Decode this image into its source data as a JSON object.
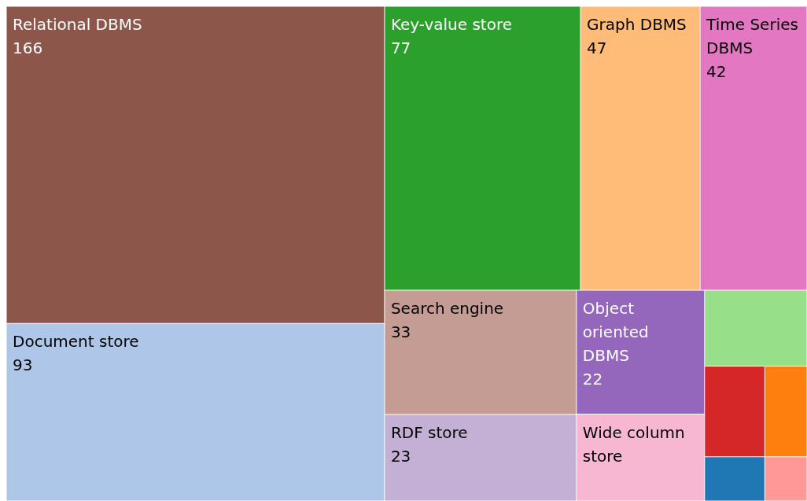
{
  "chart_data": {
    "type": "other",
    "categories": [
      "Relational DBMS",
      "Document store",
      "Key-value store",
      "Graph DBMS",
      "Time Series DBMS",
      "Search engine",
      "RDF store",
      "Object oriented DBMS",
      "Wide column store",
      null,
      null,
      null,
      null,
      null
    ],
    "values": [
      166,
      93,
      77,
      47,
      42,
      33,
      23,
      22,
      null,
      null,
      null,
      null,
      null,
      null
    ],
    "data_labels": true,
    "colors": [
      "#8c564b",
      "#aec7e8",
      "#2ca02c",
      "#ffbb78",
      "#e377c2",
      "#c49c94",
      "#c5b0d5",
      "#9467bd",
      "#f7b6d2",
      "#98df8a",
      "#d62728",
      "#ff7f0e",
      "#1f77b4",
      "#ff9896"
    ]
  }
}
